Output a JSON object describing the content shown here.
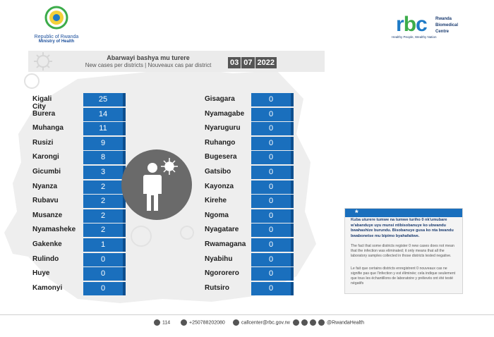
{
  "header": {
    "republic": "Republic of Rwanda",
    "ministry": "Ministry of Health",
    "rbc_letters": "rbc",
    "rbc_name_1": "Rwanda",
    "rbc_name_2": "Biomedical",
    "rbc_name_3": "Centre",
    "rbc_slogan": "Healthy People, Wealthy Nation"
  },
  "title": {
    "kinyarwanda": "Abarwayi bashya mu turere",
    "en_fr": "New cases per districts  |  Nouveaux cas par district"
  },
  "date": {
    "day": "03",
    "month": "07",
    "year": "2022"
  },
  "left_districts": [
    {
      "name": "Kigali City",
      "cases": "25"
    },
    {
      "name": "Burera",
      "cases": "14"
    },
    {
      "name": "Muhanga",
      "cases": "11"
    },
    {
      "name": "Rusizi",
      "cases": "9"
    },
    {
      "name": "Karongi",
      "cases": "8"
    },
    {
      "name": "Gicumbi",
      "cases": "3"
    },
    {
      "name": "Nyanza",
      "cases": "2"
    },
    {
      "name": "Rubavu",
      "cases": "2"
    },
    {
      "name": "Musanze",
      "cases": "2"
    },
    {
      "name": "Nyamasheke",
      "cases": "2"
    },
    {
      "name": "Gakenke",
      "cases": "1"
    },
    {
      "name": "Rulindo",
      "cases": "0"
    },
    {
      "name": "Huye",
      "cases": "0"
    },
    {
      "name": "Kamonyi",
      "cases": "0"
    }
  ],
  "right_districts": [
    {
      "name": "Gisagara",
      "cases": "0"
    },
    {
      "name": "Nyamagabe",
      "cases": "0"
    },
    {
      "name": "Nyaruguru",
      "cases": "0"
    },
    {
      "name": "Ruhango",
      "cases": "0"
    },
    {
      "name": "Bugesera",
      "cases": "0"
    },
    {
      "name": "Gatsibo",
      "cases": "0"
    },
    {
      "name": "Kayonza",
      "cases": "0"
    },
    {
      "name": "Kirehe",
      "cases": "0"
    },
    {
      "name": "Ngoma",
      "cases": "0"
    },
    {
      "name": "Nyagatare",
      "cases": "0"
    },
    {
      "name": "Rwamagana",
      "cases": "0"
    },
    {
      "name": "Nyabihu",
      "cases": "0"
    },
    {
      "name": "Ngororero",
      "cases": "0"
    },
    {
      "name": "Rutsiro",
      "cases": "0"
    }
  ],
  "note": {
    "star": "*",
    "kinyarwanda": "Kuba uturere tumwe na tumwe turiho 0 nk'umubare w'abanduye uyu munsi ntibisobanuye ko ubwandu bwahashize burundu. Bisobanuye gusa ko nta bwandu bwabonetse mu bipimo byahafatiwe.",
    "english": "The fact that some districts register 0 new cases does not mean that the infection was eliminated; it only means that all the laboratory samples collected in those districts tested negative.",
    "french": "Le fait que certains districts enregistrent 0 nouveaux cas ne signifie pas que l'infection y est éliminée; cela indique seulement que tous les échantillons de laboratoire y prélevés ont été testé négatifs"
  },
  "footer": {
    "hotline": "114",
    "phone": "+250788202080",
    "email": "callcenter@rbc.gov.rw",
    "social": "@RwandaHealth"
  },
  "colors": {
    "value_box": "#1a6fbd",
    "accent_green": "#3cac4a",
    "band": "#ebebeb"
  }
}
